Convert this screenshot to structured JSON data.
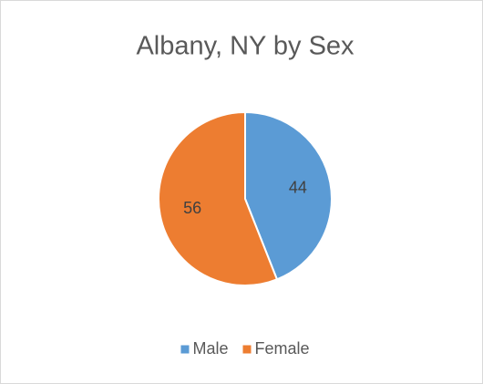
{
  "chart_data": {
    "type": "pie",
    "title": "Albany, NY by Sex",
    "categories": [
      "Male",
      "Female"
    ],
    "values": [
      44,
      56
    ],
    "colors": [
      "#5b9bd5",
      "#ed7d31"
    ],
    "legend": "bottom"
  }
}
